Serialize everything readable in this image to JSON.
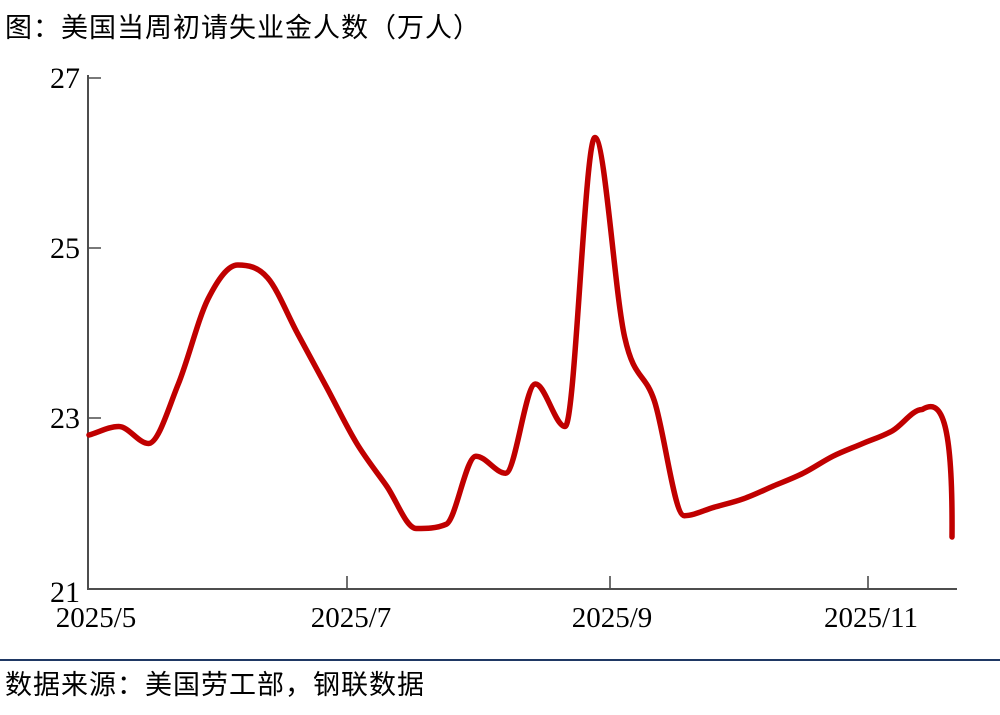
{
  "title": "图：美国当周初请失业金人数（万人）",
  "source": "数据来源：美国劳工部，钢联数据",
  "colors": {
    "line": "#C00000",
    "axis": "#4D4D4D",
    "divider": "#1F3864",
    "text": "#000000",
    "background": "#FFFFFF"
  },
  "chart_data": {
    "type": "line",
    "title": "图：美国当周初请失业金人数（万人）",
    "unit": "万人",
    "xlabel": "",
    "ylabel": "",
    "x": [
      "2025/5/3",
      "2025/5/10",
      "2025/5/17",
      "2025/5/24",
      "2025/5/31",
      "2025/6/7",
      "2025/6/14",
      "2025/6/21",
      "2025/6/28",
      "2025/7/5",
      "2025/7/12",
      "2025/7/19",
      "2025/7/26",
      "2025/8/2",
      "2025/8/9",
      "2025/8/16",
      "2025/8/23",
      "2025/8/30",
      "2025/9/6",
      "2025/9/13",
      "2025/9/20",
      "2025/9/27",
      "2025/10/4",
      "2025/10/11",
      "2025/10/18",
      "2025/10/25",
      "2025/11/1",
      "2025/11/8",
      "2025/11/15",
      "2025/11/22"
    ],
    "values": [
      22.8,
      22.9,
      22.7,
      23.4,
      24.4,
      24.8,
      24.65,
      24.0,
      23.35,
      22.7,
      22.2,
      21.7,
      21.75,
      22.55,
      22.35,
      23.4,
      22.9,
      26.3,
      23.95,
      23.2,
      21.85,
      21.95,
      22.05,
      22.2,
      22.35,
      22.55,
      22.7,
      22.85,
      23.1,
      21.6
    ],
    "ylim": [
      21,
      27
    ],
    "yticks": [
      27,
      25,
      23,
      21
    ],
    "xtick_labels": [
      "2025/5",
      "2025/7",
      "2025/9",
      "2025/11"
    ],
    "grid": false,
    "legend_position": "none",
    "line_color": "#C00000"
  }
}
